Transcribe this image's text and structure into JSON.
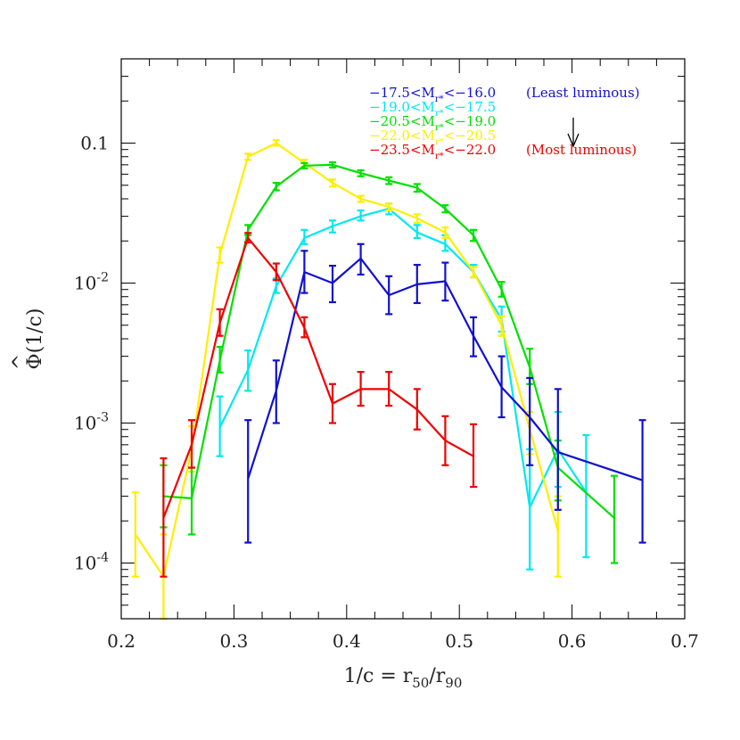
{
  "chart_data": {
    "type": "line",
    "xlabel": "1/c = r50/r90",
    "ylabel": "Φ(1/c)",
    "xlim": [
      0.2,
      0.7
    ],
    "ylim": [
      4e-05,
      0.4
    ],
    "yscale": "log",
    "grid": false,
    "xticks": [
      {
        "v": 0.2,
        "label": "0.2"
      },
      {
        "v": 0.3,
        "label": "0.3"
      },
      {
        "v": 0.4,
        "label": "0.4"
      },
      {
        "v": 0.5,
        "label": "0.5"
      },
      {
        "v": 0.6,
        "label": "0.6"
      },
      {
        "v": 0.7,
        "label": "0.7"
      }
    ],
    "yticks": [
      {
        "v": 0.0001,
        "label": "10",
        "exp": "-4"
      },
      {
        "v": 0.001,
        "label": "10",
        "exp": "-3"
      },
      {
        "v": 0.01,
        "label": "10",
        "exp": "-2"
      },
      {
        "v": 0.1,
        "label": "0.1",
        "exp": ""
      }
    ],
    "legend": {
      "placement": "top-right",
      "entries": [
        {
          "pre": "−17.5<M",
          "sub": "r*",
          "post": "<−16.0",
          "note": "(Least luminous)",
          "color": "#1010d0"
        },
        {
          "pre": "−19.0<M",
          "sub": "r*",
          "post": "<−17.5",
          "note": "",
          "color": "#00e8f0"
        },
        {
          "pre": "−20.5<M",
          "sub": "r*",
          "post": "<−19.0",
          "note": "",
          "color": "#00e000"
        },
        {
          "pre": "−22.0<M",
          "sub": "r*",
          "post": "<−20.5",
          "note": "",
          "color": "#ffee00"
        },
        {
          "pre": "−23.5<M",
          "sub": "r*",
          "post": "<−22.0",
          "note": "(Most luminous)",
          "color": "#ee0000"
        }
      ],
      "arrow": true
    },
    "series": [
      {
        "color": "#00e8f0",
        "points": [
          [
            0.2875,
            0.00093,
            0.00058,
            0.00155
          ],
          [
            0.3125,
            0.0024,
            0.0017,
            0.0033
          ],
          [
            0.3375,
            0.0095,
            0.0085,
            0.0108
          ],
          [
            0.3625,
            0.021,
            0.019,
            0.024
          ],
          [
            0.3875,
            0.0255,
            0.023,
            0.028
          ],
          [
            0.4125,
            0.03,
            0.028,
            0.033
          ],
          [
            0.4375,
            0.034,
            0.031,
            0.037
          ],
          [
            0.4625,
            0.023,
            0.021,
            0.026
          ],
          [
            0.4875,
            0.019,
            0.017,
            0.022
          ],
          [
            0.5125,
            0.012,
            0.011,
            0.0135
          ],
          [
            0.5375,
            0.0055,
            0.0045,
            0.0068
          ],
          [
            0.5625,
            0.00025,
            9e-05,
            0.00065
          ],
          [
            0.5875,
            0.00065,
            0.00035,
            0.0012
          ],
          [
            0.6125,
            0.00032,
            0.00011,
            0.00082
          ]
        ]
      },
      {
        "color": "#ffee00",
        "points": [
          [
            0.2125,
            0.00016,
            8e-05,
            0.00032
          ],
          [
            0.2375,
            8e-05,
            4e-05,
            0.00016
          ],
          [
            0.2625,
            0.00065,
            0.00045,
            0.00095
          ],
          [
            0.2875,
            0.016,
            0.014,
            0.018
          ],
          [
            0.3125,
            0.08,
            0.076,
            0.084
          ],
          [
            0.3375,
            0.1,
            0.096,
            0.105
          ],
          [
            0.3625,
            0.072,
            0.068,
            0.076
          ],
          [
            0.3875,
            0.052,
            0.049,
            0.055
          ],
          [
            0.4125,
            0.04,
            0.038,
            0.042
          ],
          [
            0.4375,
            0.035,
            0.033,
            0.037
          ],
          [
            0.4625,
            0.029,
            0.027,
            0.031
          ],
          [
            0.4875,
            0.023,
            0.021,
            0.025
          ],
          [
            0.5125,
            0.012,
            0.011,
            0.013
          ],
          [
            0.5375,
            0.005,
            0.0042,
            0.0058
          ],
          [
            0.5625,
            0.0009,
            0.0006,
            0.0012
          ],
          [
            0.5875,
            0.00017,
            8e-05,
            0.0003
          ]
        ]
      },
      {
        "color": "#00e000",
        "points": [
          [
            0.2375,
            0.0003,
            0.00018,
            0.0005
          ],
          [
            0.2625,
            0.00029,
            0.00016,
            0.00048
          ],
          [
            0.2875,
            0.0028,
            0.0023,
            0.0035
          ],
          [
            0.3125,
            0.024,
            0.022,
            0.026
          ],
          [
            0.3375,
            0.049,
            0.046,
            0.052
          ],
          [
            0.3625,
            0.069,
            0.066,
            0.072
          ],
          [
            0.3875,
            0.07,
            0.067,
            0.073
          ],
          [
            0.4125,
            0.061,
            0.058,
            0.064
          ],
          [
            0.4375,
            0.054,
            0.051,
            0.057
          ],
          [
            0.4625,
            0.048,
            0.045,
            0.051
          ],
          [
            0.4875,
            0.034,
            0.032,
            0.036
          ],
          [
            0.5125,
            0.022,
            0.02,
            0.024
          ],
          [
            0.5375,
            0.009,
            0.008,
            0.0102
          ],
          [
            0.5625,
            0.0025,
            0.0019,
            0.0034
          ],
          [
            0.5875,
            0.00048,
            0.00028,
            0.00075
          ],
          [
            0.6375,
            0.00021,
            0.0001,
            0.00042
          ]
        ]
      },
      {
        "color": "#1010d0",
        "points": [
          [
            0.3125,
            0.0004,
            0.00014,
            0.00105
          ],
          [
            0.3375,
            0.0017,
            0.001,
            0.0028
          ],
          [
            0.3625,
            0.012,
            0.0085,
            0.017
          ],
          [
            0.3875,
            0.01,
            0.0073,
            0.0133
          ],
          [
            0.4125,
            0.015,
            0.0115,
            0.019
          ],
          [
            0.4375,
            0.0082,
            0.006,
            0.0112
          ],
          [
            0.4625,
            0.0098,
            0.0072,
            0.0135
          ],
          [
            0.4875,
            0.0103,
            0.0075,
            0.014
          ],
          [
            0.5125,
            0.0042,
            0.003,
            0.0057
          ],
          [
            0.5375,
            0.0018,
            0.0011,
            0.003
          ],
          [
            0.5625,
            0.0011,
            0.0005,
            0.0021
          ],
          [
            0.5875,
            0.00062,
            0.00024,
            0.00175
          ],
          [
            0.6625,
            0.00039,
            0.00014,
            0.00105
          ]
        ]
      },
      {
        "color": "#ee0000",
        "points": [
          [
            0.2375,
            0.00021,
            8e-05,
            0.00056
          ],
          [
            0.2625,
            0.0007,
            0.00048,
            0.00105
          ],
          [
            0.2875,
            0.0052,
            0.0042,
            0.0065
          ],
          [
            0.3125,
            0.021,
            0.0195,
            0.0228
          ],
          [
            0.3375,
            0.012,
            0.0105,
            0.0138
          ],
          [
            0.3625,
            0.0048,
            0.0041,
            0.0057
          ],
          [
            0.3875,
            0.00138,
            0.001,
            0.0019
          ],
          [
            0.4125,
            0.00175,
            0.00133,
            0.00232
          ],
          [
            0.4375,
            0.00175,
            0.00133,
            0.00232
          ],
          [
            0.4625,
            0.00125,
            0.0009,
            0.00175
          ],
          [
            0.4875,
            0.00075,
            0.0005,
            0.00112
          ],
          [
            0.5125,
            0.00058,
            0.00035,
            0.00098
          ]
        ]
      }
    ]
  }
}
